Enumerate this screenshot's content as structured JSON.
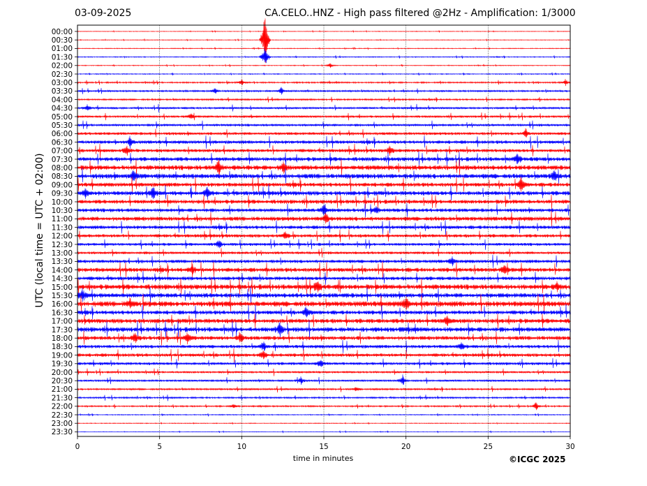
{
  "header": {
    "date": "03-09-2025",
    "title": "CA.CELO..HNZ - High pass filtered @2Hz - Amplification: 1/3000"
  },
  "footer": {
    "copyright": "©ICGC 2025"
  },
  "colors": {
    "red_trace": "#ff0000",
    "blue_trace": "#0000ff"
  },
  "chart_data": {
    "type": "line",
    "subtype": "helicorder",
    "xlabel": "time in minutes",
    "ylabel": "UTC (local time = UTC + 02:00)",
    "xlim": [
      0,
      30
    ],
    "xticks": [
      0,
      5,
      10,
      15,
      20,
      25,
      30
    ],
    "grid": "vertical dotted lines at x ticks",
    "rows": [
      "00:00",
      "00:30",
      "01:00",
      "01:30",
      "02:00",
      "02:30",
      "03:00",
      "03:30",
      "04:00",
      "04:30",
      "05:00",
      "05:30",
      "06:00",
      "06:30",
      "07:00",
      "07:30",
      "08:00",
      "08:30",
      "09:00",
      "09:30",
      "10:00",
      "10:30",
      "11:00",
      "11:30",
      "12:00",
      "12:30",
      "13:00",
      "13:30",
      "14:00",
      "14:30",
      "15:00",
      "15:30",
      "16:00",
      "16:30",
      "17:00",
      "17:30",
      "18:00",
      "18:30",
      "19:00",
      "19:30",
      "20:00",
      "20:30",
      "21:00",
      "21:30",
      "22:00",
      "22:30",
      "23:00",
      "23:30"
    ],
    "row_colors": [
      "red",
      "red",
      "red",
      "blue",
      "red",
      "blue",
      "red",
      "blue",
      "red",
      "blue",
      "red",
      "blue",
      "red",
      "blue",
      "red",
      "blue",
      "red",
      "blue",
      "red",
      "blue",
      "red",
      "blue",
      "red",
      "blue",
      "red",
      "blue",
      "red",
      "blue",
      "red",
      "blue",
      "red",
      "blue",
      "red",
      "blue",
      "red",
      "blue",
      "red",
      "blue",
      "red",
      "blue",
      "red",
      "blue",
      "red",
      "blue",
      "red",
      "blue",
      "red",
      "blue"
    ],
    "noise_level": [
      0.3,
      0.3,
      0.4,
      0.5,
      0.4,
      0.5,
      0.8,
      1.0,
      0.9,
      1.2,
      1.3,
      1.5,
      1.7,
      2.0,
      2.0,
      2.4,
      2.8,
      2.9,
      2.4,
      2.6,
      2.4,
      2.2,
      2.5,
      2.1,
      2.0,
      1.7,
      1.6,
      2.0,
      2.5,
      2.2,
      3.0,
      2.8,
      3.2,
      2.4,
      2.7,
      2.8,
      2.4,
      2.0,
      2.0,
      1.7,
      1.2,
      1.2,
      1.0,
      0.9,
      0.8,
      0.5,
      0.4,
      0.3
    ],
    "events": [
      {
        "row": 1,
        "minute": 11.4,
        "amplitude": 55
      },
      {
        "row": 3,
        "minute": 11.4,
        "amplitude": 18
      },
      {
        "row": 4,
        "minute": 15.4,
        "amplitude": 4
      },
      {
        "row": 6,
        "minute": 10.0,
        "amplitude": 5
      },
      {
        "row": 6,
        "minute": 29.7,
        "amplitude": 5
      },
      {
        "row": 7,
        "minute": 8.4,
        "amplitude": 6
      },
      {
        "row": 7,
        "minute": 12.4,
        "amplitude": 6
      },
      {
        "row": 9,
        "minute": 0.6,
        "amplitude": 5
      },
      {
        "row": 10,
        "minute": 6.9,
        "amplitude": 6
      },
      {
        "row": 12,
        "minute": 27.3,
        "amplitude": 7
      },
      {
        "row": 13,
        "minute": 3.2,
        "amplitude": 7
      },
      {
        "row": 14,
        "minute": 3.0,
        "amplitude": 8
      },
      {
        "row": 14,
        "minute": 19.0,
        "amplitude": 7
      },
      {
        "row": 15,
        "minute": 26.8,
        "amplitude": 9
      },
      {
        "row": 16,
        "minute": 8.6,
        "amplitude": 12
      },
      {
        "row": 16,
        "minute": 12.5,
        "amplitude": 8
      },
      {
        "row": 17,
        "minute": 3.4,
        "amplitude": 9
      },
      {
        "row": 17,
        "minute": 29.0,
        "amplitude": 10
      },
      {
        "row": 18,
        "minute": 27.0,
        "amplitude": 12
      },
      {
        "row": 19,
        "minute": 4.6,
        "amplitude": 10
      },
      {
        "row": 19,
        "minute": 7.9,
        "amplitude": 9
      },
      {
        "row": 19,
        "minute": 0.5,
        "amplitude": 7
      },
      {
        "row": 21,
        "minute": 15.0,
        "amplitude": 10
      },
      {
        "row": 21,
        "minute": 18.2,
        "amplitude": 8
      },
      {
        "row": 22,
        "minute": 15.1,
        "amplitude": 12
      },
      {
        "row": 24,
        "minute": 12.6,
        "amplitude": 8
      },
      {
        "row": 25,
        "minute": 8.6,
        "amplitude": 7
      },
      {
        "row": 27,
        "minute": 22.8,
        "amplitude": 7
      },
      {
        "row": 28,
        "minute": 7.0,
        "amplitude": 8
      },
      {
        "row": 28,
        "minute": 26.0,
        "amplitude": 8
      },
      {
        "row": 30,
        "minute": 29.2,
        "amplitude": 10
      },
      {
        "row": 30,
        "minute": 14.6,
        "amplitude": 14
      },
      {
        "row": 31,
        "minute": 0.3,
        "amplitude": 9
      },
      {
        "row": 32,
        "minute": 20.0,
        "amplitude": 11
      },
      {
        "row": 32,
        "minute": 3.2,
        "amplitude": 8
      },
      {
        "row": 33,
        "minute": 13.9,
        "amplitude": 10
      },
      {
        "row": 34,
        "minute": 22.5,
        "amplitude": 7
      },
      {
        "row": 35,
        "minute": 12.3,
        "amplitude": 11
      },
      {
        "row": 36,
        "minute": 3.5,
        "amplitude": 8
      },
      {
        "row": 36,
        "minute": 6.7,
        "amplitude": 9
      },
      {
        "row": 36,
        "minute": 9.9,
        "amplitude": 9
      },
      {
        "row": 37,
        "minute": 11.3,
        "amplitude": 9
      },
      {
        "row": 37,
        "minute": 23.4,
        "amplitude": 6
      },
      {
        "row": 38,
        "minute": 11.3,
        "amplitude": 7
      },
      {
        "row": 39,
        "minute": 14.8,
        "amplitude": 7
      },
      {
        "row": 41,
        "minute": 19.8,
        "amplitude": 8
      },
      {
        "row": 41,
        "minute": 13.6,
        "amplitude": 6
      },
      {
        "row": 42,
        "minute": 17.0,
        "amplitude": 4
      },
      {
        "row": 44,
        "minute": 27.9,
        "amplitude": 6
      },
      {
        "row": 44,
        "minute": 9.5,
        "amplitude": 4
      }
    ]
  }
}
